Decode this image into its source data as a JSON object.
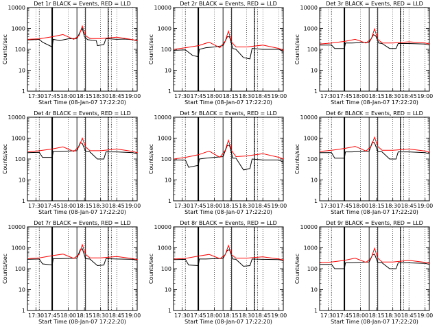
{
  "chart_data": [
    {
      "type": "line",
      "title": "Det 1r BLACK = Events, RED = LLD",
      "ylabel": "Counts/sec",
      "xlabel": "Start Time (08-Jan-07 17:22:20)",
      "x_ticks": [
        "17:30",
        "17:45",
        "18:00",
        "18:15",
        "18:30",
        "18:45",
        "19:00"
      ],
      "y_ticks": [
        "1",
        "10",
        "100",
        "1000",
        "10000"
      ],
      "yscale": "log",
      "ylim": [
        1,
        10000
      ],
      "xlim": [
        "17:22",
        "19:04"
      ],
      "series": [
        {
          "color": "#000000",
          "x": [
            "17:22",
            "17:33",
            "17:36",
            "17:45",
            "17:46",
            "17:52",
            "17:56",
            "18:00",
            "18:05",
            "18:08",
            "18:11",
            "18:13",
            "18:15",
            "18:18",
            "18:22",
            "18:26",
            "18:27",
            "18:33",
            "18:35",
            "18:45",
            "18:52",
            "19:00",
            "19:04"
          ],
          "values": [
            280,
            300,
            220,
            130,
            300,
            260,
            290,
            320,
            330,
            330,
            700,
            1000,
            400,
            290,
            270,
            260,
            150,
            170,
            330,
            300,
            310,
            290,
            250
          ]
        },
        {
          "color": "#ff0000",
          "x": [
            "17:22",
            "17:33",
            "17:45",
            "17:55",
            "18:05",
            "18:10",
            "18:13",
            "18:16",
            "18:20",
            "18:30",
            "18:45",
            "19:00",
            "19:04"
          ],
          "values": [
            300,
            320,
            400,
            510,
            300,
            460,
            1300,
            450,
            330,
            330,
            380,
            290,
            260
          ]
        }
      ]
    },
    {
      "type": "line",
      "title": "Det 2r BLACK = Events, RED = LLD",
      "ylabel": "Counts/sec",
      "xlabel": "Start Time (08-Jan-07 17:22:20)",
      "x_ticks": [
        "17:30",
        "17:45",
        "18:00",
        "18:15",
        "18:30",
        "18:45",
        "19:00"
      ],
      "y_ticks": [
        "1",
        "10",
        "100",
        "1000",
        "10000"
      ],
      "yscale": "log",
      "ylim": [
        1,
        10000
      ],
      "xlim": [
        "17:22",
        "19:04"
      ],
      "series": [
        {
          "color": "#000000",
          "x": [
            "17:22",
            "17:33",
            "17:40",
            "17:45",
            "17:46",
            "17:52",
            "18:00",
            "18:08",
            "18:12",
            "18:14",
            "18:17",
            "18:20",
            "18:27",
            "18:33",
            "18:35",
            "18:45",
            "19:00",
            "19:04"
          ],
          "values": [
            90,
            95,
            50,
            45,
            100,
            120,
            130,
            150,
            400,
            400,
            110,
            100,
            40,
            35,
            110,
            100,
            100,
            80
          ]
        },
        {
          "color": "#ff0000",
          "x": [
            "17:22",
            "17:33",
            "17:45",
            "17:55",
            "18:05",
            "18:10",
            "18:13",
            "18:16",
            "18:20",
            "18:30",
            "18:45",
            "19:00",
            "19:04"
          ],
          "values": [
            100,
            120,
            150,
            220,
            120,
            250,
            750,
            220,
            130,
            130,
            160,
            110,
            90
          ]
        }
      ]
    },
    {
      "type": "line",
      "title": "Det 3r BLACK = Events, RED = LLD",
      "ylabel": "Counts/sec",
      "xlabel": "Start Time (08-Jan-07 17:22:20)",
      "x_ticks": [
        "17:30",
        "17:45",
        "18:00",
        "18:15",
        "18:30",
        "18:45",
        "19:00"
      ],
      "y_ticks": [
        "1",
        "10",
        "100",
        "1000",
        "10000"
      ],
      "yscale": "log",
      "ylim": [
        1,
        10000
      ],
      "xlim": [
        "17:22",
        "19:04"
      ],
      "series": [
        {
          "color": "#000000",
          "x": [
            "17:22",
            "17:33",
            "17:36",
            "17:45",
            "17:46",
            "17:52",
            "18:00",
            "18:08",
            "18:12",
            "18:14",
            "18:17",
            "18:20",
            "18:27",
            "18:33",
            "18:35",
            "18:45",
            "19:00",
            "19:04"
          ],
          "values": [
            160,
            160,
            110,
            110,
            200,
            200,
            210,
            220,
            500,
            450,
            200,
            190,
            110,
            110,
            190,
            190,
            180,
            160
          ]
        },
        {
          "color": "#ff0000",
          "x": [
            "17:22",
            "17:33",
            "17:45",
            "17:55",
            "18:05",
            "18:10",
            "18:13",
            "18:16",
            "18:20",
            "18:30",
            "18:45",
            "19:00",
            "19:04"
          ],
          "values": [
            180,
            200,
            240,
            300,
            200,
            320,
            950,
            300,
            200,
            200,
            230,
            200,
            180
          ]
        }
      ]
    },
    {
      "type": "line",
      "title": "Det 4r BLACK = Events, RED = LLD",
      "ylabel": "Counts/sec",
      "xlabel": "Start Time (08-Jan-07 17:22:20)",
      "x_ticks": [
        "17:30",
        "17:45",
        "18:00",
        "18:15",
        "18:30",
        "18:45",
        "19:00"
      ],
      "y_ticks": [
        "1",
        "10",
        "100",
        "1000",
        "10000"
      ],
      "yscale": "log",
      "ylim": [
        1,
        10000
      ],
      "xlim": [
        "17:22",
        "19:04"
      ],
      "series": [
        {
          "color": "#000000",
          "x": [
            "17:22",
            "17:33",
            "17:36",
            "17:45",
            "17:46",
            "17:52",
            "18:00",
            "18:08",
            "18:11",
            "18:13",
            "18:16",
            "18:20",
            "18:27",
            "18:33",
            "18:35",
            "18:45",
            "19:00",
            "19:04"
          ],
          "values": [
            200,
            210,
            120,
            120,
            230,
            230,
            240,
            250,
            600,
            550,
            240,
            220,
            100,
            100,
            220,
            220,
            200,
            180
          ]
        },
        {
          "color": "#ff0000",
          "x": [
            "17:22",
            "17:33",
            "17:45",
            "17:55",
            "18:05",
            "18:10",
            "18:13",
            "18:16",
            "18:20",
            "18:30",
            "18:45",
            "19:00",
            "19:04"
          ],
          "values": [
            220,
            250,
            300,
            380,
            230,
            400,
            1000,
            380,
            250,
            250,
            300,
            230,
            200
          ]
        }
      ]
    },
    {
      "type": "line",
      "title": "Det 5r BLACK = Events, RED = LLD",
      "ylabel": "Counts/sec",
      "xlabel": "Start Time (08-Jan-07 17:22:20)",
      "x_ticks": [
        "17:30",
        "17:45",
        "18:00",
        "18:15",
        "18:30",
        "18:45",
        "19:00"
      ],
      "y_ticks": [
        "1",
        "10",
        "100",
        "1000",
        "10000"
      ],
      "yscale": "log",
      "ylim": [
        1,
        10000
      ],
      "xlim": [
        "17:22",
        "19:04"
      ],
      "series": [
        {
          "color": "#000000",
          "x": [
            "17:22",
            "17:33",
            "17:36",
            "17:45",
            "17:46",
            "17:52",
            "18:00",
            "18:08",
            "18:12",
            "18:14",
            "18:17",
            "18:20",
            "18:27",
            "18:33",
            "18:35",
            "18:45",
            "19:00",
            "19:04"
          ],
          "values": [
            90,
            90,
            40,
            50,
            100,
            110,
            120,
            130,
            450,
            450,
            110,
            110,
            30,
            35,
            100,
            90,
            90,
            70
          ]
        },
        {
          "color": "#ff0000",
          "x": [
            "17:22",
            "17:33",
            "17:45",
            "17:55",
            "18:05",
            "18:10",
            "18:13",
            "18:16",
            "18:20",
            "18:30",
            "18:45",
            "19:00",
            "19:04"
          ],
          "values": [
            100,
            120,
            160,
            240,
            120,
            260,
            800,
            250,
            130,
            140,
            180,
            120,
            100
          ]
        }
      ]
    },
    {
      "type": "line",
      "title": "Det 6r BLACK = Events, RED = LLD",
      "ylabel": "Counts/sec",
      "xlabel": "Start Time (08-Jan-07 17:22:20)",
      "x_ticks": [
        "17:30",
        "17:45",
        "18:00",
        "18:15",
        "18:30",
        "18:45",
        "19:00"
      ],
      "y_ticks": [
        "1",
        "10",
        "100",
        "1000",
        "10000"
      ],
      "yscale": "log",
      "ylim": [
        1,
        10000
      ],
      "xlim": [
        "17:22",
        "19:04"
      ],
      "series": [
        {
          "color": "#000000",
          "x": [
            "17:22",
            "17:33",
            "17:36",
            "17:45",
            "17:46",
            "17:52",
            "18:00",
            "18:08",
            "18:11",
            "18:13",
            "18:16",
            "18:20",
            "18:27",
            "18:33",
            "18:35",
            "18:45",
            "19:00",
            "19:04"
          ],
          "values": [
            200,
            200,
            110,
            110,
            220,
            220,
            230,
            240,
            650,
            600,
            230,
            220,
            100,
            100,
            220,
            220,
            200,
            180
          ]
        },
        {
          "color": "#ff0000",
          "x": [
            "17:22",
            "17:33",
            "17:45",
            "17:55",
            "18:05",
            "18:10",
            "18:13",
            "18:16",
            "18:20",
            "18:30",
            "18:45",
            "19:00",
            "19:04"
          ],
          "values": [
            230,
            260,
            320,
            400,
            240,
            420,
            1100,
            400,
            260,
            260,
            300,
            240,
            210
          ]
        }
      ]
    },
    {
      "type": "line",
      "title": "Det 7r BLACK = Events, RED = LLD",
      "ylabel": "Counts/sec",
      "xlabel": "Start Time (08-Jan-07 17:22:20)",
      "x_ticks": [
        "17:30",
        "17:45",
        "18:00",
        "18:15",
        "18:30",
        "18:45",
        "19:00"
      ],
      "y_ticks": [
        "1",
        "10",
        "100",
        "1000",
        "10000"
      ],
      "yscale": "log",
      "ylim": [
        1,
        10000
      ],
      "xlim": [
        "17:22",
        "19:04"
      ],
      "series": [
        {
          "color": "#000000",
          "x": [
            "17:22",
            "17:33",
            "17:36",
            "17:45",
            "17:46",
            "17:52",
            "18:00",
            "18:08",
            "18:11",
            "18:13",
            "18:16",
            "18:20",
            "18:27",
            "18:33",
            "18:35",
            "18:45",
            "19:00",
            "19:04"
          ],
          "values": [
            280,
            290,
            170,
            150,
            300,
            300,
            310,
            320,
            800,
            900,
            300,
            290,
            140,
            150,
            300,
            290,
            280,
            250
          ]
        },
        {
          "color": "#ff0000",
          "x": [
            "17:22",
            "17:33",
            "17:45",
            "17:55",
            "18:05",
            "18:10",
            "18:13",
            "18:16",
            "18:20",
            "18:30",
            "18:45",
            "19:00",
            "19:04"
          ],
          "values": [
            300,
            330,
            420,
            500,
            310,
            480,
            1400,
            480,
            330,
            330,
            380,
            300,
            270
          ]
        }
      ]
    },
    {
      "type": "line",
      "title": "Det 8r BLACK = Events, RED = LLD",
      "ylabel": "Counts/sec",
      "xlabel": "Start Time (08-Jan-07 17:22:20)",
      "x_ticks": [
        "17:30",
        "17:45",
        "18:00",
        "18:15",
        "18:30",
        "18:45",
        "19:00"
      ],
      "y_ticks": [
        "1",
        "10",
        "100",
        "1000",
        "10000"
      ],
      "yscale": "log",
      "ylim": [
        1,
        10000
      ],
      "xlim": [
        "17:22",
        "19:04"
      ],
      "series": [
        {
          "color": "#000000",
          "x": [
            "17:22",
            "17:33",
            "17:36",
            "17:45",
            "17:46",
            "17:52",
            "18:00",
            "18:08",
            "18:12",
            "18:14",
            "18:17",
            "18:20",
            "18:27",
            "18:33",
            "18:35",
            "18:45",
            "19:00",
            "19:04"
          ],
          "values": [
            270,
            280,
            150,
            140,
            290,
            290,
            300,
            310,
            750,
            800,
            290,
            280,
            130,
            140,
            290,
            280,
            270,
            240
          ]
        },
        {
          "color": "#ff0000",
          "x": [
            "17:22",
            "17:33",
            "17:45",
            "17:55",
            "18:05",
            "18:10",
            "18:13",
            "18:16",
            "18:20",
            "18:30",
            "18:45",
            "19:00",
            "19:04"
          ],
          "values": [
            290,
            310,
            400,
            480,
            300,
            460,
            1300,
            460,
            320,
            320,
            370,
            290,
            260
          ]
        }
      ]
    },
    {
      "type": "line",
      "title": "Det 9r BLACK = Events, RED = LLD",
      "ylabel": "Counts/sec",
      "xlabel": "Start Time (08-Jan-07 17:22:20)",
      "x_ticks": [
        "17:30",
        "17:45",
        "18:00",
        "18:15",
        "18:30",
        "18:45",
        "19:00"
      ],
      "y_ticks": [
        "1",
        "10",
        "100",
        "1000",
        "10000"
      ],
      "yscale": "log",
      "ylim": [
        1,
        10000
      ],
      "xlim": [
        "17:22",
        "19:04"
      ],
      "series": [
        {
          "color": "#000000",
          "x": [
            "17:22",
            "17:33",
            "17:36",
            "17:45",
            "17:46",
            "17:52",
            "18:00",
            "18:08",
            "18:11",
            "18:13",
            "18:16",
            "18:20",
            "18:27",
            "18:33",
            "18:35",
            "18:45",
            "19:00",
            "19:04"
          ],
          "values": [
            160,
            160,
            100,
            100,
            190,
            190,
            200,
            210,
            450,
            500,
            200,
            190,
            100,
            100,
            190,
            190,
            180,
            160
          ]
        },
        {
          "color": "#ff0000",
          "x": [
            "17:22",
            "17:33",
            "17:45",
            "17:55",
            "18:05",
            "18:10",
            "18:13",
            "18:16",
            "18:20",
            "18:30",
            "18:45",
            "19:00",
            "19:04"
          ],
          "values": [
            190,
            210,
            250,
            320,
            200,
            330,
            950,
            320,
            210,
            210,
            250,
            200,
            180
          ]
        }
      ]
    }
  ]
}
